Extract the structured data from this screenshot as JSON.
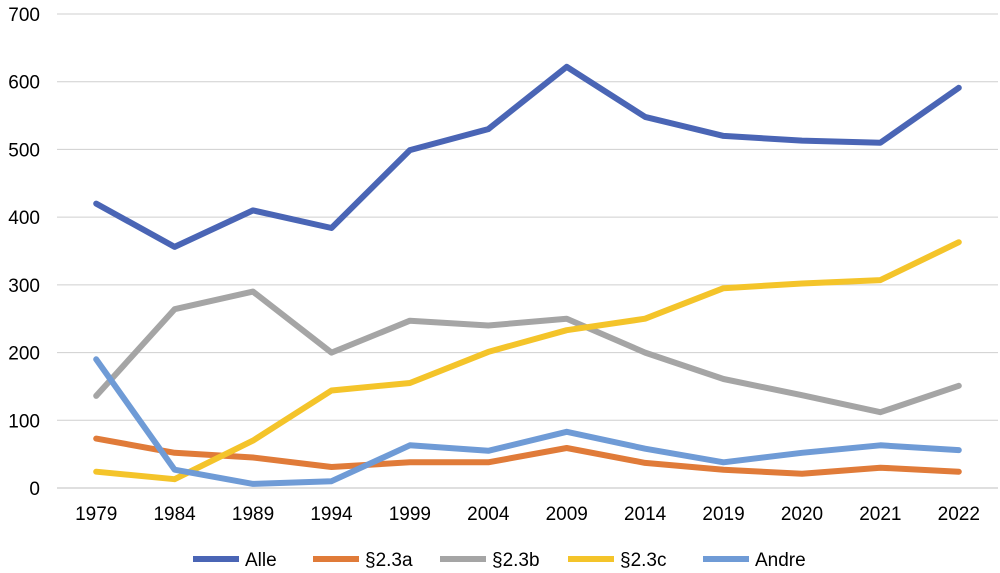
{
  "chart_data": {
    "type": "line",
    "title": "",
    "xlabel": "",
    "ylabel": "",
    "ylim": [
      0,
      700
    ],
    "yticks": [
      0,
      100,
      200,
      300,
      400,
      500,
      600,
      700
    ],
    "grid": true,
    "legend_position": "bottom",
    "categories": [
      "1979",
      "1984",
      "1989",
      "1994",
      "1999",
      "2004",
      "2009",
      "2014",
      "2019",
      "2020",
      "2021",
      "2022"
    ],
    "series": [
      {
        "name": "Alle",
        "color": "#4a65b5",
        "values": [
          420,
          356,
          410,
          384,
          499,
          530,
          622,
          548,
          520,
          513,
          510,
          591
        ]
      },
      {
        "name": "§2.3a",
        "color": "#e07b39",
        "values": [
          73,
          52,
          45,
          31,
          38,
          38,
          59,
          37,
          27,
          21,
          30,
          24
        ]
      },
      {
        "name": "§2.3b",
        "color": "#a5a5a5",
        "values": [
          136,
          264,
          290,
          200,
          247,
          240,
          250,
          200,
          161,
          137,
          112,
          151
        ]
      },
      {
        "name": "§2.3c",
        "color": "#f4c42a",
        "values": [
          24,
          13,
          70,
          144,
          155,
          201,
          233,
          250,
          295,
          302,
          307,
          363
        ]
      },
      {
        "name": "Andre",
        "color": "#6f9bd6",
        "values": [
          190,
          27,
          6,
          10,
          63,
          55,
          83,
          58,
          38,
          52,
          63,
          56
        ]
      }
    ]
  }
}
